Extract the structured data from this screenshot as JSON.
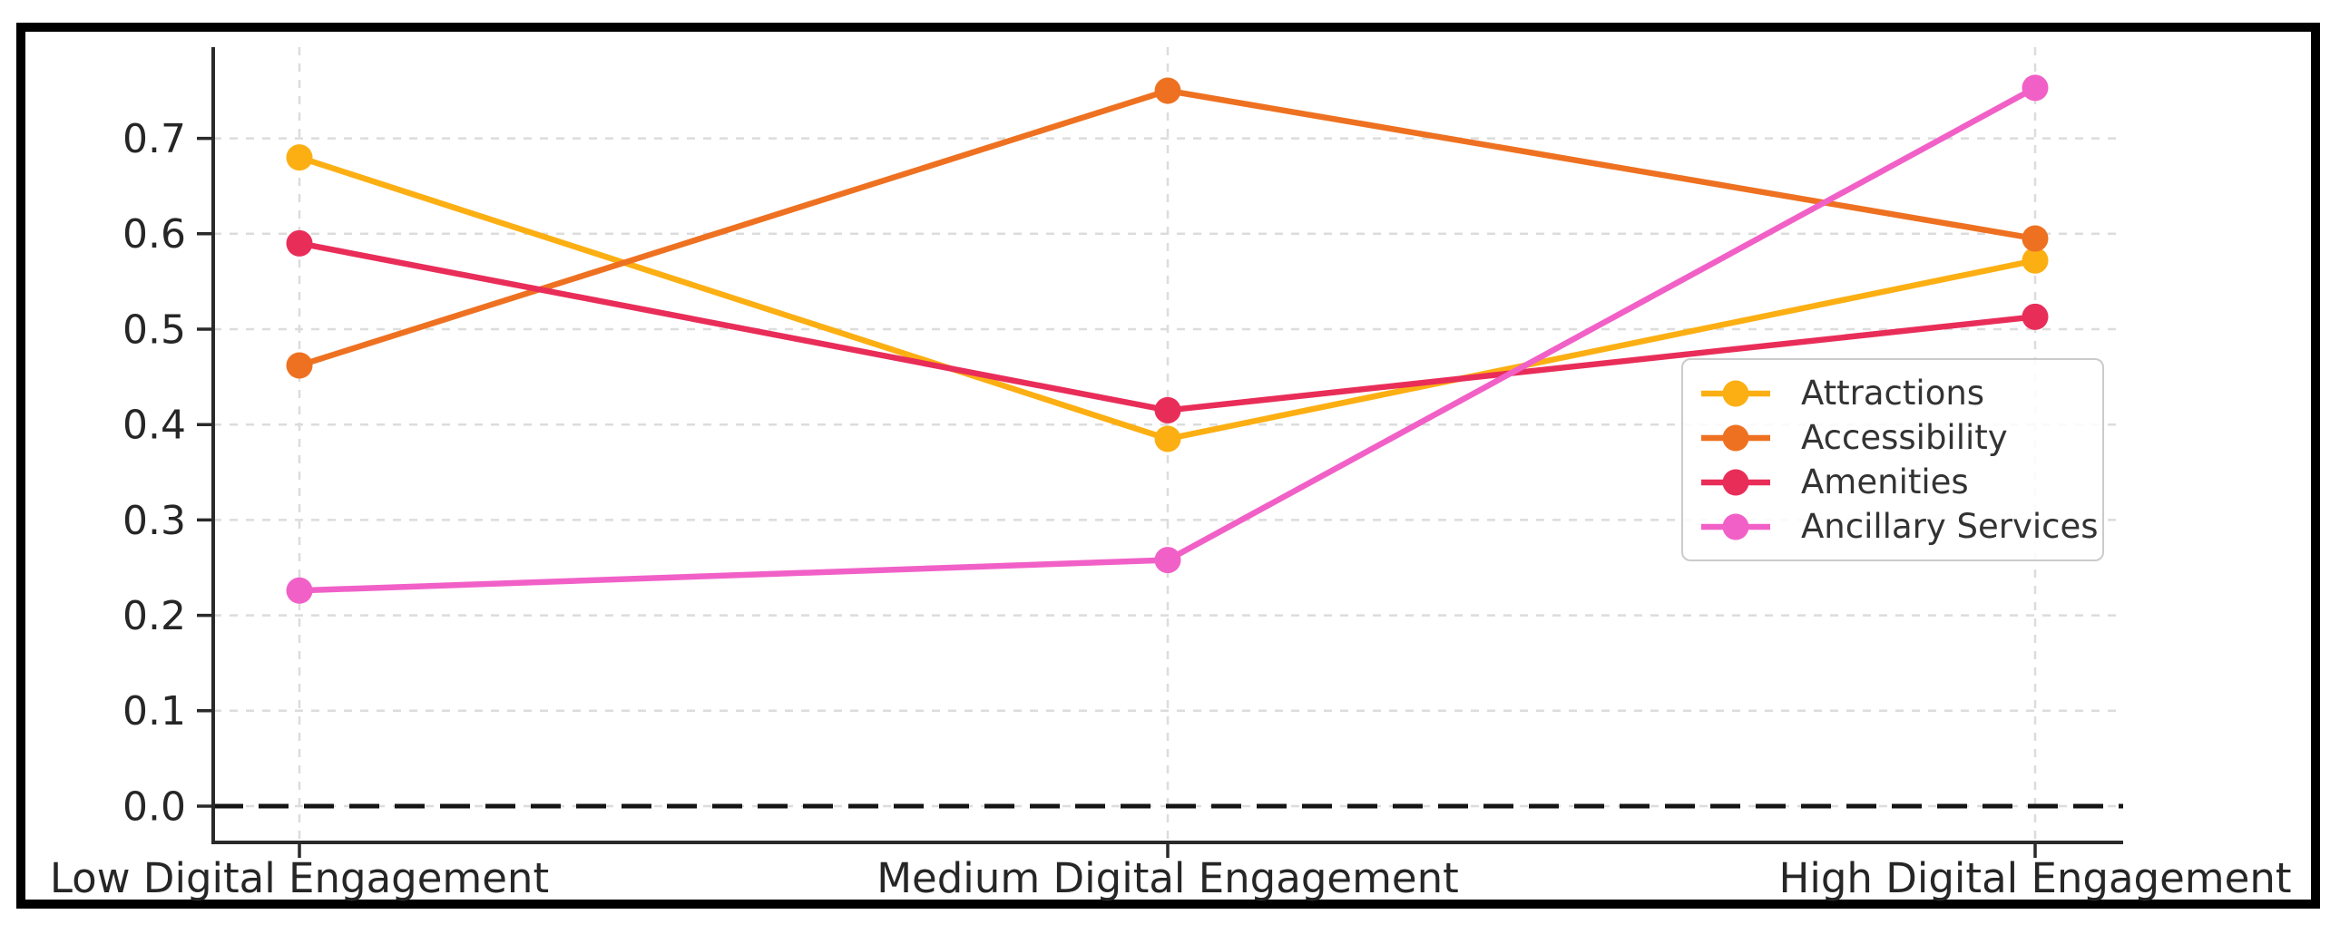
{
  "chart_data": {
    "type": "line",
    "categories": [
      "Low Digital Engagement",
      "Medium Digital Engagement",
      "High Digital Engagement"
    ],
    "series": [
      {
        "name": "Attractions",
        "color": "#FCAF13",
        "values": [
          0.68,
          0.385,
          0.572
        ]
      },
      {
        "name": "Accessibility",
        "color": "#EE7121",
        "values": [
          0.462,
          0.75,
          0.595
        ]
      },
      {
        "name": "Amenities",
        "color": "#E92D59",
        "values": [
          0.59,
          0.415,
          0.513
        ]
      },
      {
        "name": "Ancillary Services",
        "color": "#F160C7",
        "values": [
          0.226,
          0.258,
          0.753
        ]
      }
    ],
    "yticks": [
      0.0,
      0.1,
      0.2,
      0.3,
      0.4,
      0.5,
      0.6,
      0.7
    ],
    "ytick_labels": [
      "0.0",
      "0.1",
      "0.2",
      "0.3",
      "0.4",
      "0.5",
      "0.6",
      "0.7"
    ],
    "ylim": [
      -0.038,
      0.796
    ],
    "grid": {
      "style": "dashed",
      "horizontal": true,
      "vertical": true,
      "color": "#dcdcdc"
    },
    "zero_line": {
      "y": 0.0,
      "style": "dashed",
      "color": "#141414"
    },
    "legend": {
      "position": "center-right",
      "entries": [
        "Attractions",
        "Accessibility",
        "Amenities",
        "Ancillary Services"
      ]
    },
    "marker": "circle"
  },
  "colors": {
    "background": "#ffffff",
    "outer_frame": "#000000",
    "spine": "#2a2a2a",
    "tick_label": "#262626",
    "legend_text": "#333333",
    "legend_border": "#cbcbcb",
    "grid": "#dcdcdc"
  }
}
